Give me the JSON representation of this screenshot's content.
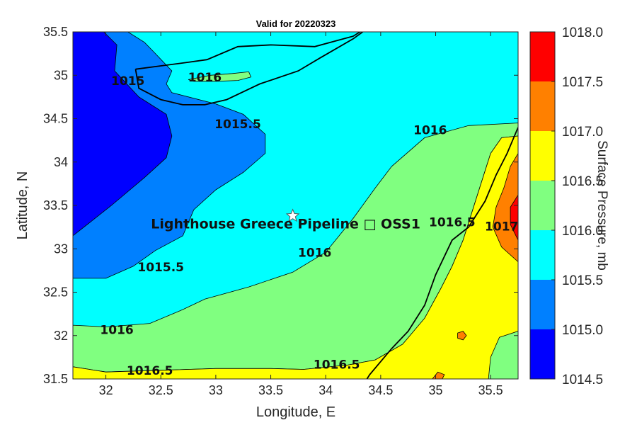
{
  "title": "Valid for 20220323",
  "xlabel": "Longitude, E",
  "ylabel": "Latitude, N",
  "x_ticks": [
    "32",
    "32.5",
    "33",
    "33.5",
    "34",
    "34.5",
    "35",
    "35.5"
  ],
  "y_ticks": [
    "35.5",
    "35",
    "34.5",
    "34",
    "33.5",
    "33",
    "32.5",
    "32",
    "31.5"
  ],
  "colorbar": {
    "label": "Surface Pressure, mb",
    "ticks": [
      "1018.0",
      "1017.5",
      "1017.0",
      "1016.5",
      "1016.0",
      "1015.5",
      "1015.0",
      "1014.5"
    ],
    "colors": [
      "#ff0000",
      "#ff8000",
      "#ffff00",
      "#80ff80",
      "#00ffff",
      "#0080ff",
      "#0000ff"
    ]
  },
  "site": {
    "name": "Lighthouse Greece Pipeline □ OSS1",
    "lon": 33.7,
    "lat": 33.38
  },
  "contour_labels": [
    {
      "text": "1016",
      "lon": 32.9,
      "lat": 34.97
    },
    {
      "text": "1015",
      "lon": 32.2,
      "lat": 34.93
    },
    {
      "text": "1015.5",
      "lon": 33.2,
      "lat": 34.43
    },
    {
      "text": "1016",
      "lon": 34.95,
      "lat": 34.36
    },
    {
      "text": "1015.5",
      "lon": 32.5,
      "lat": 32.78
    },
    {
      "text": "1016",
      "lon": 33.9,
      "lat": 32.95
    },
    {
      "text": "1016.5",
      "lon": 35.15,
      "lat": 33.3
    },
    {
      "text": "1017",
      "lon": 35.6,
      "lat": 33.25
    },
    {
      "text": "1016",
      "lon": 32.1,
      "lat": 32.06
    },
    {
      "text": "1016.5",
      "lon": 32.4,
      "lat": 31.59
    },
    {
      "text": "1016.5",
      "lon": 34.1,
      "lat": 31.66
    }
  ],
  "chart_data": {
    "type": "heatmap",
    "title": "Valid for 20220323",
    "xlabel": "Longitude, E",
    "ylabel": "Latitude, N",
    "xlim": [
      31.7,
      35.75
    ],
    "ylim": [
      31.5,
      35.5
    ],
    "levels": [
      1014.5,
      1015.0,
      1015.5,
      1016.0,
      1016.5,
      1017.0,
      1017.5,
      1018.0
    ],
    "regions": [
      {
        "level": "1016.0-1016.5",
        "points": [
          [
            31.7,
            32.12
          ],
          [
            32.0,
            32.1
          ],
          [
            32.4,
            32.14
          ],
          [
            32.7,
            32.3
          ],
          [
            32.9,
            32.42
          ],
          [
            33.3,
            32.56
          ],
          [
            33.7,
            32.73
          ],
          [
            34.0,
            32.96
          ],
          [
            34.25,
            33.35
          ],
          [
            34.45,
            33.7
          ],
          [
            34.6,
            33.95
          ],
          [
            34.9,
            34.28
          ],
          [
            35.3,
            34.42
          ],
          [
            35.75,
            34.45
          ],
          [
            35.75,
            34.3
          ],
          [
            35.6,
            34.28
          ],
          [
            35.5,
            34.1
          ],
          [
            35.4,
            33.7
          ],
          [
            35.25,
            33.1
          ],
          [
            35.15,
            32.8
          ],
          [
            35.05,
            32.55
          ],
          [
            34.9,
            32.2
          ],
          [
            34.7,
            31.9
          ],
          [
            34.45,
            31.72
          ],
          [
            34.2,
            31.66
          ],
          [
            33.8,
            31.61
          ],
          [
            33.5,
            31.62
          ],
          [
            33.0,
            31.62
          ],
          [
            32.5,
            31.6
          ],
          [
            32.0,
            31.58
          ],
          [
            31.7,
            31.64
          ]
        ]
      },
      {
        "level": "1016.5-1017.0",
        "points": [
          [
            31.7,
            31.64
          ],
          [
            32.0,
            31.58
          ],
          [
            32.5,
            31.6
          ],
          [
            33.0,
            31.62
          ],
          [
            33.5,
            31.62
          ],
          [
            33.8,
            31.61
          ],
          [
            34.2,
            31.66
          ],
          [
            34.45,
            31.72
          ],
          [
            34.7,
            31.9
          ],
          [
            34.9,
            32.2
          ],
          [
            35.05,
            32.55
          ],
          [
            35.15,
            32.8
          ],
          [
            35.25,
            33.1
          ],
          [
            35.4,
            33.7
          ],
          [
            35.5,
            34.1
          ],
          [
            35.6,
            34.28
          ],
          [
            35.75,
            34.3
          ],
          [
            35.75,
            31.5
          ],
          [
            31.7,
            31.5
          ]
        ]
      },
      {
        "level": "1016.0-1016.5",
        "points": [
          [
            35.48,
            31.5
          ],
          [
            35.5,
            31.75
          ],
          [
            35.58,
            31.98
          ],
          [
            35.75,
            32.05
          ],
          [
            35.75,
            31.5
          ]
        ]
      },
      {
        "level": "1017.0-1017.5",
        "points": [
          [
            35.75,
            32.85
          ],
          [
            35.6,
            33.02
          ],
          [
            35.52,
            33.25
          ],
          [
            35.55,
            33.48
          ],
          [
            35.62,
            33.7
          ],
          [
            35.68,
            33.95
          ],
          [
            35.75,
            34.1
          ]
        ]
      },
      {
        "level": "1017.5-1018.0",
        "points": [
          [
            35.75,
            33.1
          ],
          [
            35.68,
            33.28
          ],
          [
            35.68,
            33.48
          ],
          [
            35.75,
            33.62
          ]
        ]
      },
      {
        "level": "1015.0-1015.5",
        "points": [
          [
            31.7,
            35.5
          ],
          [
            32.2,
            35.5
          ],
          [
            32.35,
            35.38
          ],
          [
            32.45,
            35.25
          ],
          [
            32.6,
            35.05
          ],
          [
            32.55,
            34.9
          ],
          [
            32.6,
            34.8
          ],
          [
            33.0,
            34.67
          ],
          [
            33.25,
            34.55
          ],
          [
            33.45,
            34.32
          ],
          [
            33.45,
            34.1
          ],
          [
            33.25,
            33.88
          ],
          [
            33.0,
            33.68
          ],
          [
            32.8,
            33.45
          ],
          [
            32.7,
            33.15
          ],
          [
            32.45,
            32.98
          ],
          [
            32.25,
            32.8
          ],
          [
            32.0,
            32.66
          ],
          [
            31.7,
            32.66
          ]
        ]
      },
      {
        "level": "1014.5-1015.0",
        "points": [
          [
            31.7,
            35.5
          ],
          [
            31.98,
            35.5
          ],
          [
            32.1,
            35.35
          ],
          [
            32.08,
            35.05
          ],
          [
            32.3,
            34.75
          ],
          [
            32.55,
            34.55
          ],
          [
            32.6,
            34.3
          ],
          [
            32.55,
            34.05
          ],
          [
            32.35,
            33.82
          ],
          [
            32.05,
            33.5
          ],
          [
            31.7,
            33.15
          ]
        ]
      },
      {
        "level": "1016.0-1016.5",
        "points": [
          [
            32.75,
            34.95
          ],
          [
            32.95,
            35.0
          ],
          [
            33.15,
            35.02
          ],
          [
            33.3,
            35.04
          ],
          [
            33.32,
            34.98
          ],
          [
            33.2,
            34.94
          ],
          [
            33.0,
            34.93
          ],
          [
            32.8,
            34.93
          ]
        ]
      },
      {
        "level": "1017.0-1017.5",
        "points": [
          [
            35.2,
            32.03
          ],
          [
            35.25,
            32.05
          ],
          [
            35.28,
            32.0
          ],
          [
            35.25,
            31.95
          ],
          [
            35.2,
            31.97
          ]
        ]
      },
      {
        "level": "1017.0-1017.5",
        "points": [
          [
            34.97,
            31.5
          ],
          [
            35.02,
            31.58
          ],
          [
            35.08,
            31.55
          ],
          [
            35.06,
            31.5
          ]
        ]
      }
    ],
    "coastlines": [
      [
        [
          32.27,
          35.07
        ],
        [
          32.45,
          35.1
        ],
        [
          32.75,
          35.15
        ],
        [
          32.92,
          35.18
        ],
        [
          33.2,
          35.33
        ],
        [
          33.5,
          35.35
        ],
        [
          33.9,
          35.33
        ],
        [
          34.25,
          35.45
        ],
        [
          34.5,
          35.65
        ],
        [
          34.25,
          35.42
        ],
        [
          33.95,
          35.2
        ],
        [
          33.75,
          35.05
        ],
        [
          33.4,
          34.9
        ],
        [
          33.1,
          34.72
        ],
        [
          32.9,
          34.66
        ],
        [
          32.7,
          34.66
        ],
        [
          32.5,
          34.72
        ],
        [
          32.3,
          34.85
        ],
        [
          32.27,
          35.07
        ]
      ],
      [
        [
          35.75,
          34.4
        ],
        [
          35.65,
          34.1
        ],
        [
          35.55,
          33.85
        ],
        [
          35.45,
          33.55
        ],
        [
          35.3,
          33.25
        ],
        [
          35.15,
          33.1
        ],
        [
          35.0,
          32.7
        ],
        [
          34.9,
          32.35
        ],
        [
          34.75,
          32.05
        ],
        [
          34.6,
          31.85
        ],
        [
          34.4,
          31.55
        ],
        [
          34.35,
          31.45
        ]
      ]
    ]
  }
}
